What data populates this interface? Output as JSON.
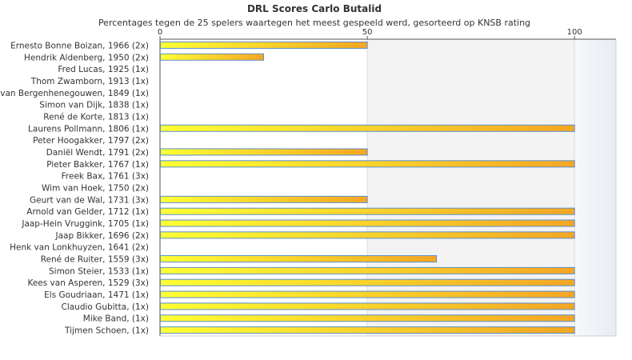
{
  "chart_data": {
    "type": "bar",
    "orientation": "horizontal",
    "title": "DRL Scores Carlo Butalid",
    "subtitle": "Percentages tegen de 25 spelers waartegen het meest gespeeld werd, gesorteerd op KNSB rating",
    "xlim": [
      0,
      110
    ],
    "xticks": [
      0,
      50,
      100
    ],
    "grid": true,
    "categories": [
      "Ernesto Bonne Boizan, 1966 (2x)",
      "Hendrik Aldenberg, 1950 (2x)",
      "Fred Lucas, 1925 (1x)",
      "Thom Zwamborn, 1913 (1x)",
      "van Bergenhenegouwen, 1849 (1x)",
      "Simon van Dijk, 1838 (1x)",
      "René de Korte, 1813 (1x)",
      "Laurens Pollmann, 1806 (1x)",
      "Peter Hoogakker, 1797 (2x)",
      "Daniël Wendt, 1791 (2x)",
      "Pieter Bakker, 1767 (1x)",
      "Freek Bax, 1761 (3x)",
      "Wim van Hoek, 1750 (2x)",
      "Geurt van de Wal, 1731 (3x)",
      "Arnold van Gelder, 1712 (1x)",
      "Jaap-Hein Vruggink, 1705 (1x)",
      "Jaap Bikker, 1696 (2x)",
      "Henk van Lonkhuyzen, 1641 (2x)",
      "René de Ruiter, 1559 (3x)",
      "Simon Steier, 1533 (1x)",
      "Kees van Asperen, 1529 (3x)",
      "Els Goudriaan, 1471 (1x)",
      "Claudio Gubitta,  (1x)",
      "Mike Band,  (1x)",
      "Tijmen Schoen,  (1x)"
    ],
    "values": [
      50,
      25,
      0,
      0,
      0,
      0,
      0,
      100,
      0,
      50,
      100,
      0,
      0,
      50,
      100,
      100,
      100,
      0,
      66.7,
      100,
      100,
      100,
      100,
      100,
      100
    ],
    "colors": {
      "bar_start": "#ffff33",
      "bar_end": "#f5a623",
      "bar_stroke": "#5b8fc9",
      "band": "#f3f3f3"
    }
  }
}
